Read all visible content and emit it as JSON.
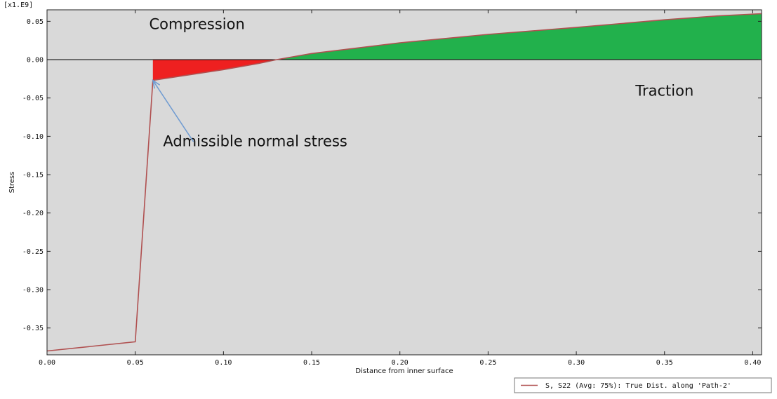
{
  "chart_data": {
    "type": "line",
    "title": "",
    "xlabel": "Distance from inner surface",
    "ylabel": "Stress",
    "y_multiplier": "[x1.E9]",
    "xlim": [
      0.0,
      0.405
    ],
    "ylim": [
      -0.385,
      0.065
    ],
    "x_ticks": [
      0.0,
      0.05,
      0.1,
      0.15,
      0.2,
      0.25,
      0.3,
      0.35,
      0.4
    ],
    "x_tick_labels": [
      "0.00",
      "0.05",
      "0.10",
      "0.15",
      "0.20",
      "0.25",
      "0.30",
      "0.35",
      "0.40"
    ],
    "y_ticks": [
      0.05,
      0.0,
      -0.05,
      -0.1,
      -0.15,
      -0.2,
      -0.25,
      -0.3,
      -0.35
    ],
    "y_tick_labels": [
      "0.05",
      "0.00",
      "-0.05",
      "-0.10",
      "-0.15",
      "-0.20",
      "-0.25",
      "-0.30",
      "-0.35"
    ],
    "grid": false,
    "background_color": "#d9d9d9",
    "series": [
      {
        "name": "S, S22 (Avg: 75%): True Dist. along 'Path-2'",
        "color": "#b05050",
        "x": [
          0.0,
          0.05,
          0.06,
          0.08,
          0.1,
          0.12,
          0.13,
          0.15,
          0.2,
          0.25,
          0.3,
          0.35,
          0.38,
          0.405
        ],
        "y": [
          -0.38,
          -0.368,
          -0.027,
          -0.02,
          -0.013,
          -0.005,
          0.0,
          0.008,
          0.022,
          0.033,
          0.042,
          0.052,
          0.057,
          0.06
        ]
      }
    ],
    "fill_regions": [
      {
        "label": "Compression",
        "color": "#ee2020",
        "x_from": 0.06,
        "x_to": 0.13
      },
      {
        "label": "Traction",
        "color": "#22b14c",
        "x_from": 0.13,
        "x_to": 0.405
      }
    ],
    "annotations": [
      {
        "text": "Compression",
        "x": 0.085,
        "y": 0.04
      },
      {
        "text": "Traction",
        "x": 0.35,
        "y": -0.047
      },
      {
        "text": "Admissible normal stress",
        "x": 0.118,
        "y": -0.113
      }
    ],
    "arrow": {
      "color": "#6f9bd1",
      "from": [
        0.083,
        -0.107
      ],
      "to": [
        0.06,
        -0.027
      ]
    },
    "legend": {
      "placement": "bottom-right"
    }
  }
}
